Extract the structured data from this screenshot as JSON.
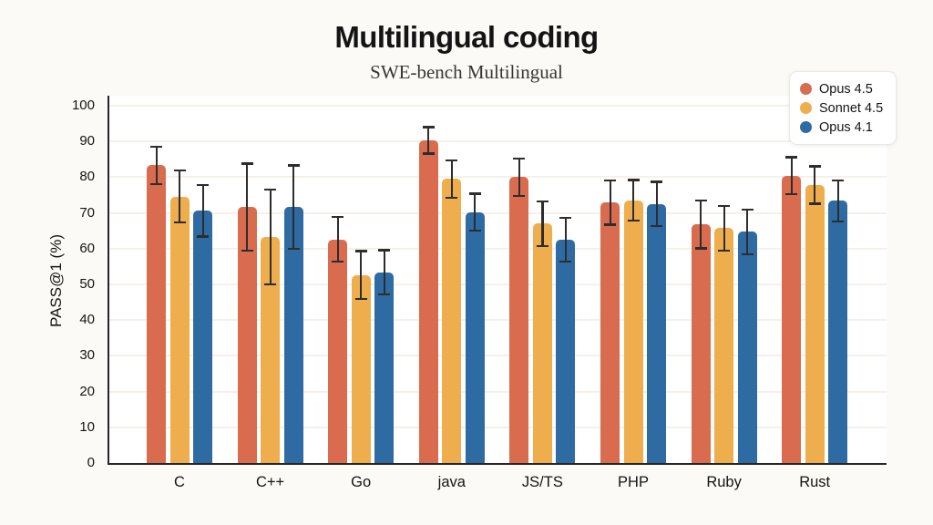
{
  "page": {
    "title": "Multilingual coding",
    "subtitle": "SWE-bench Multilingual",
    "background_color": "#FBFAF6"
  },
  "chart_data": {
    "type": "bar",
    "title": "Multilingual coding",
    "subtitle": "SWE-bench Multilingual",
    "xlabel": "",
    "ylabel": "PASS@1 (%)",
    "ylim": [
      0,
      100
    ],
    "yticks": [
      0,
      10,
      20,
      30,
      40,
      50,
      60,
      70,
      80,
      90,
      100
    ],
    "grid": true,
    "legend_position": "top-right",
    "error_bars": true,
    "categories": [
      "C",
      "C++",
      "Go",
      "java",
      "JS/TS",
      "PHP",
      "Ruby",
      "Rust"
    ],
    "series": [
      {
        "name": "Opus 4.5",
        "color": "#D96C4F",
        "values": [
          83.3,
          71.6,
          62.6,
          90.3,
          80.0,
          72.9,
          66.8,
          80.4
        ],
        "errors": [
          5.5,
          12.5,
          6.5,
          4.0,
          5.5,
          6.5,
          7.0,
          5.5
        ]
      },
      {
        "name": "Sonnet 4.5",
        "color": "#EFAE4D",
        "values": [
          74.6,
          63.3,
          52.6,
          79.5,
          67.0,
          73.5,
          65.7,
          77.8
        ],
        "errors": [
          7.5,
          13.5,
          7.0,
          5.5,
          6.5,
          6.0,
          6.5,
          5.5
        ]
      },
      {
        "name": "Opus 4.1",
        "color": "#2E6BA3",
        "values": [
          70.6,
          71.6,
          53.4,
          70.2,
          62.5,
          72.5,
          64.7,
          73.4
        ],
        "errors": [
          7.5,
          12.0,
          6.5,
          5.5,
          6.5,
          6.5,
          6.5,
          6.0
        ]
      }
    ],
    "style_colors": {
      "axis": "#262626",
      "gridline": "#F6F0EA",
      "error_bar": "#2D2D2D",
      "plot_background": "#FFFFFF"
    }
  }
}
